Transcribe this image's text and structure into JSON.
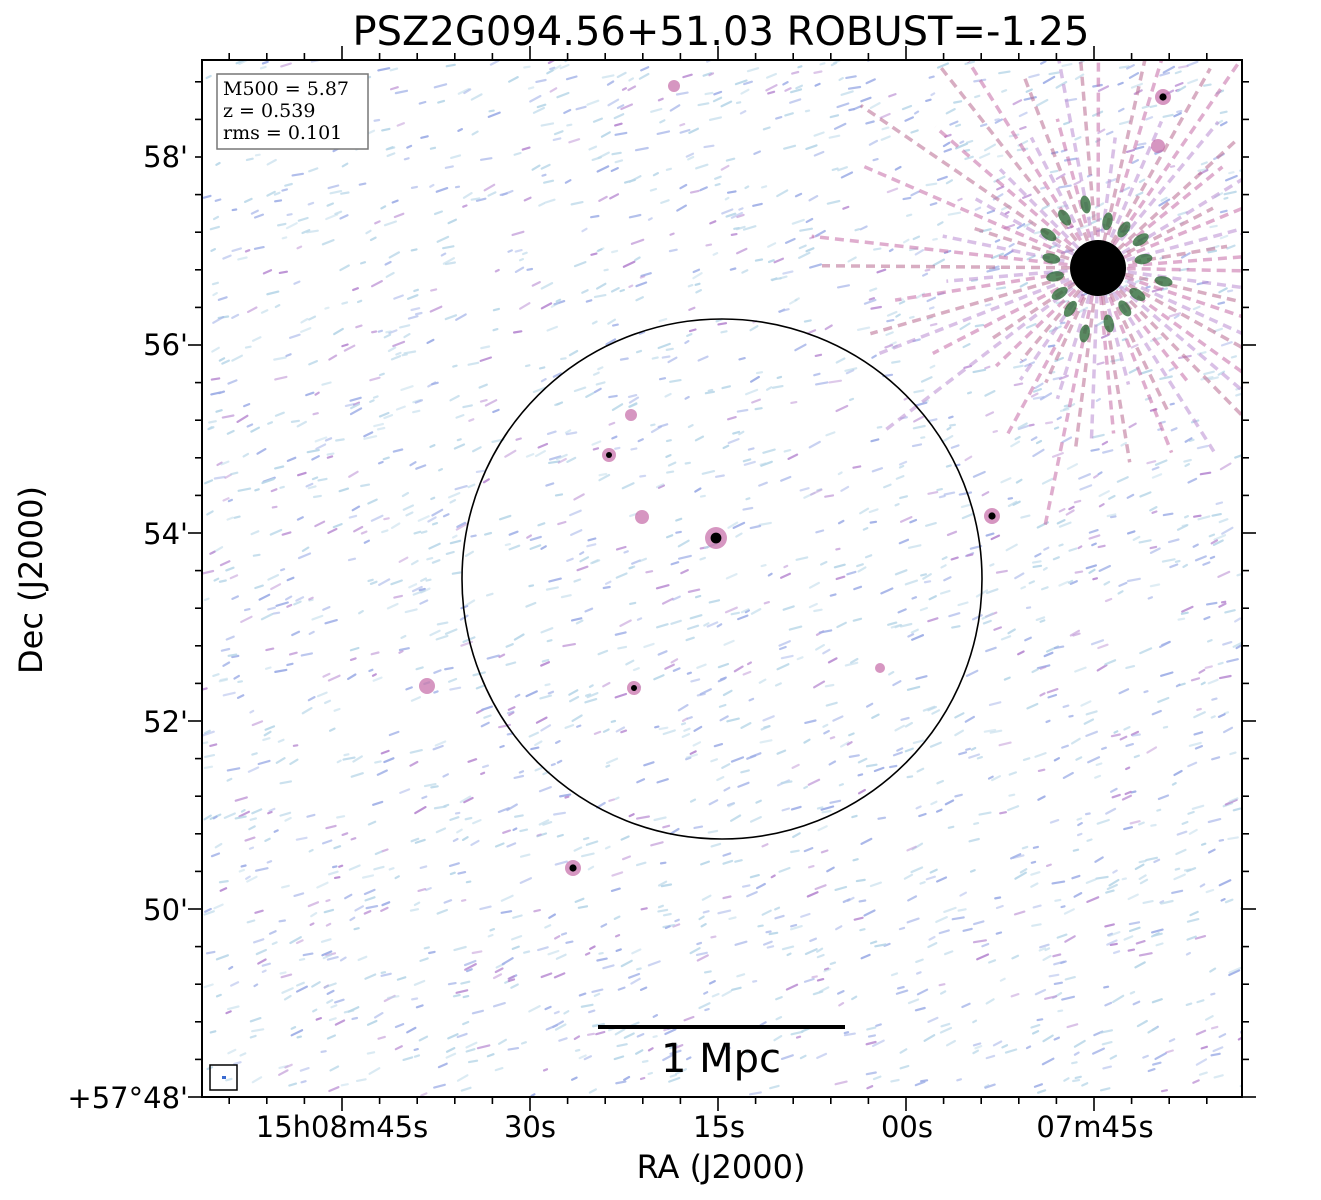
{
  "chart_data": {
    "type": "heatmap",
    "title": "PSZ2G094.56+51.03 ROBUST=-1.25",
    "xlabel": "RA (J2000)",
    "ylabel": "Dec (J2000)",
    "x_tick_labels": [
      "15h08m45s",
      "30s",
      "15s",
      "00s",
      "07m45s"
    ],
    "y_tick_labels": [
      "+57°48'",
      "50'",
      "52'",
      "54'",
      "56'",
      "58'"
    ],
    "info_box": [
      "M500 = 5.87",
      "z = 0.539",
      "rms = 0.101"
    ],
    "scale_bar_label": "1 Mpc",
    "colors": {
      "background": "#ffffff",
      "noise_light": "#b9d7e8",
      "noise_blue": "#9eaee6",
      "noise_purple": "#b98cd2",
      "noise_magenta": "#c46aa6",
      "source_green": "#2f6b3a",
      "source_core": "#000000",
      "circle": "#000000"
    }
  }
}
